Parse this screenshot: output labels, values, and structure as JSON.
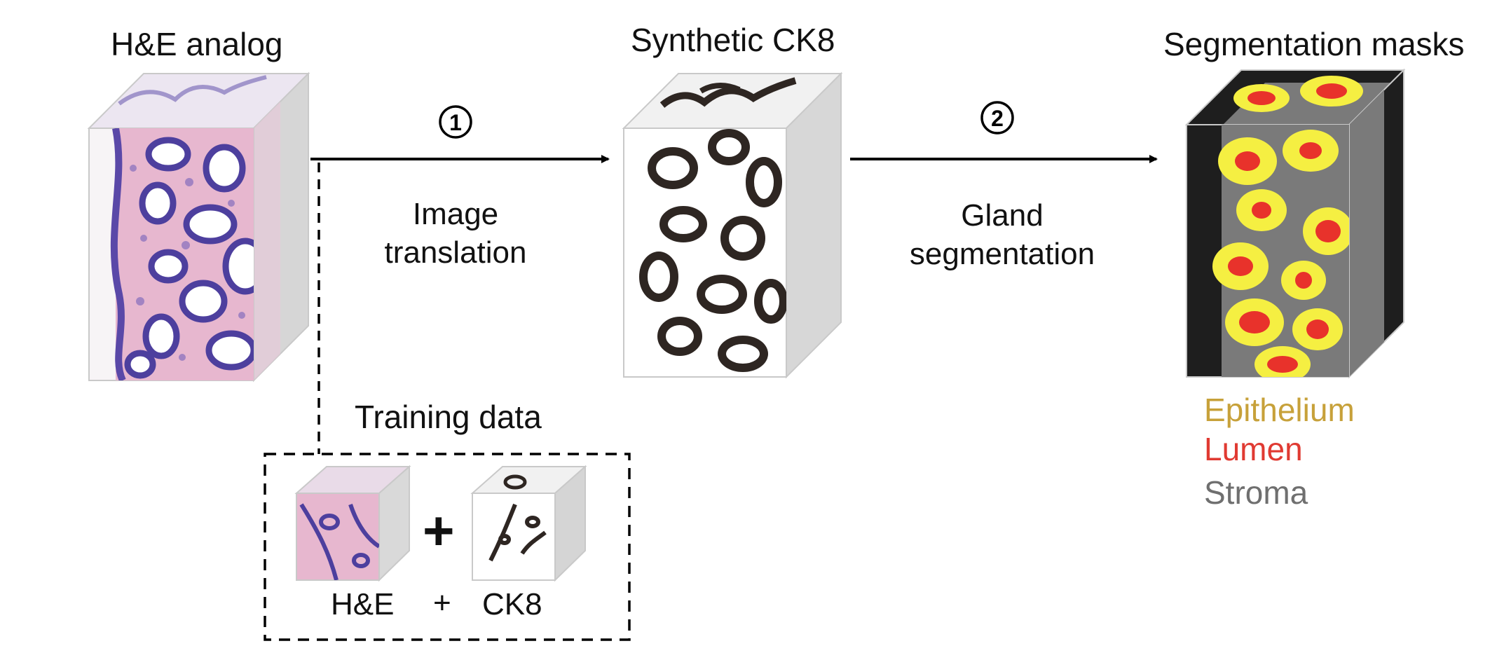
{
  "stages": {
    "he_title": "H&E analog",
    "ck8_title": "Synthetic CK8",
    "seg_title": "Segmentation masks"
  },
  "steps": {
    "step1_number": "1",
    "step1_line1": "Image",
    "step1_line2": "translation",
    "step2_number": "2",
    "step2_line1": "Gland",
    "step2_line2": "segmentation"
  },
  "training": {
    "title": "Training data",
    "plus_big": "+",
    "he_label": "H&E",
    "plus_small": "+",
    "ck8_label": "CK8"
  },
  "legend": {
    "epithelium": "Epithelium",
    "lumen": "Lumen",
    "stroma": "Stroma"
  },
  "colors": {
    "he_tissue": "#e7b7cf",
    "he_nuclei": "#4d3f9e",
    "ck8_stain": "#2e2622",
    "epithelium": "#f5ef42",
    "lumen": "#e8322b",
    "stroma": "#7a7a7a",
    "epithelium_label": "#c7a13a",
    "lumen_label": "#e03a32",
    "stroma_label": "#6f6f6f"
  }
}
